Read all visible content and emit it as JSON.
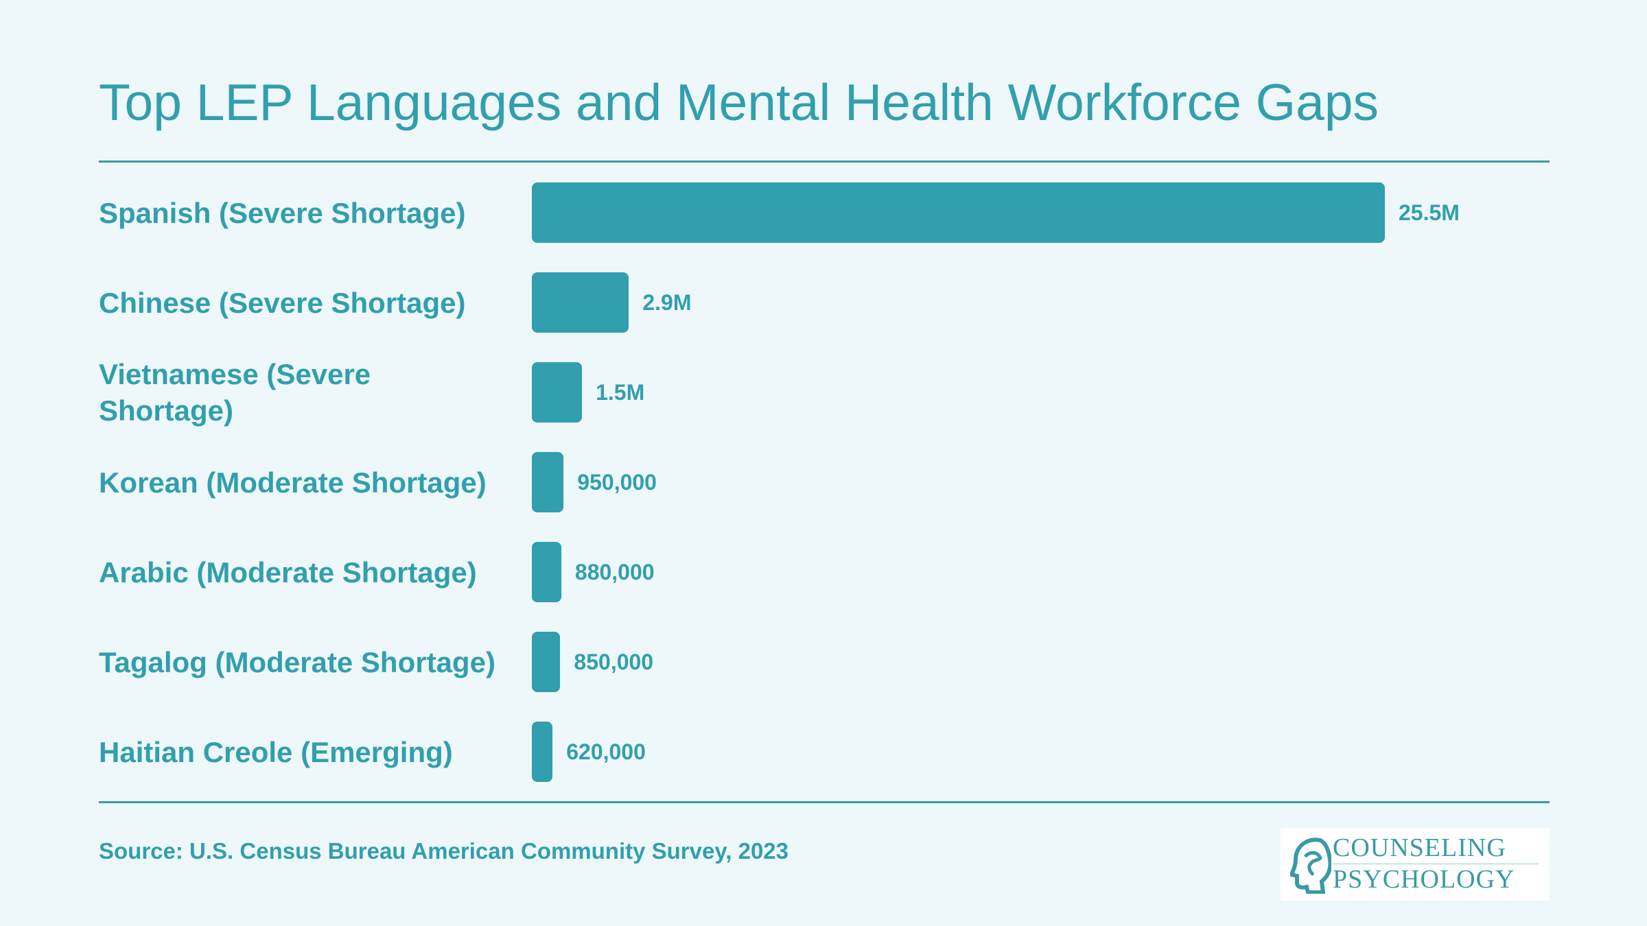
{
  "chart_data": {
    "type": "bar",
    "orientation": "horizontal",
    "title": "Top LEP Languages and Mental Health Workforce Gaps",
    "categories": [
      "Spanish (Severe Shortage)",
      "Chinese (Severe Shortage)",
      "Vietnamese (Severe Shortage)",
      "Korean (Moderate Shortage)",
      "Arabic (Moderate Shortage)",
      "Tagalog (Moderate Shortage)",
      "Haitian Creole (Emerging)"
    ],
    "values": [
      25500000,
      2900000,
      1500000,
      950000,
      880000,
      850000,
      620000
    ],
    "value_labels": [
      "25.5M",
      "2.9M",
      "1.5M",
      "950,000",
      "880,000",
      "850,000",
      "620,000"
    ],
    "xlabel": "",
    "ylabel": "",
    "grid": false,
    "bar_color": "#319fad"
  },
  "source": "Source: U.S. Census Bureau American Community Survey, 2023",
  "logo": {
    "line1": "COUNSELING",
    "line2": "PSYCHOLOGY"
  },
  "colors": {
    "background": "#eef7f9",
    "accent": "#319fad"
  }
}
